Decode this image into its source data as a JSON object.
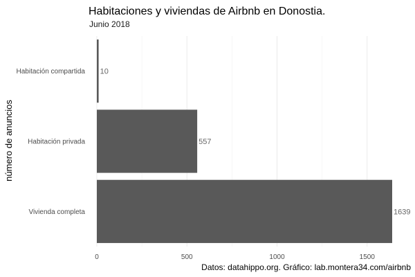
{
  "chart_data": {
    "type": "bar",
    "orientation": "horizontal",
    "title": "Habitaciones y viviendas de Airbnb en Donostia.",
    "subtitle": "Junio 2018",
    "xlabel": "",
    "ylabel": "número de anuncios",
    "categories": [
      "Habitación compartida",
      "Habitación privada",
      "Vivienda completa"
    ],
    "values": [
      10,
      557,
      1639
    ],
    "value_labels": [
      "10",
      "557",
      "1639"
    ],
    "x_ticks": [
      0,
      500,
      1000,
      1500
    ],
    "x_tick_labels": [
      "0",
      "500",
      "1000",
      "1500"
    ],
    "xlim": [
      0,
      1639
    ],
    "bar_color": "#595959",
    "grid": true,
    "legend": "none",
    "caption": "Datos: datahippo.org. Gráfico: lab.montera34.com/airbnb"
  }
}
